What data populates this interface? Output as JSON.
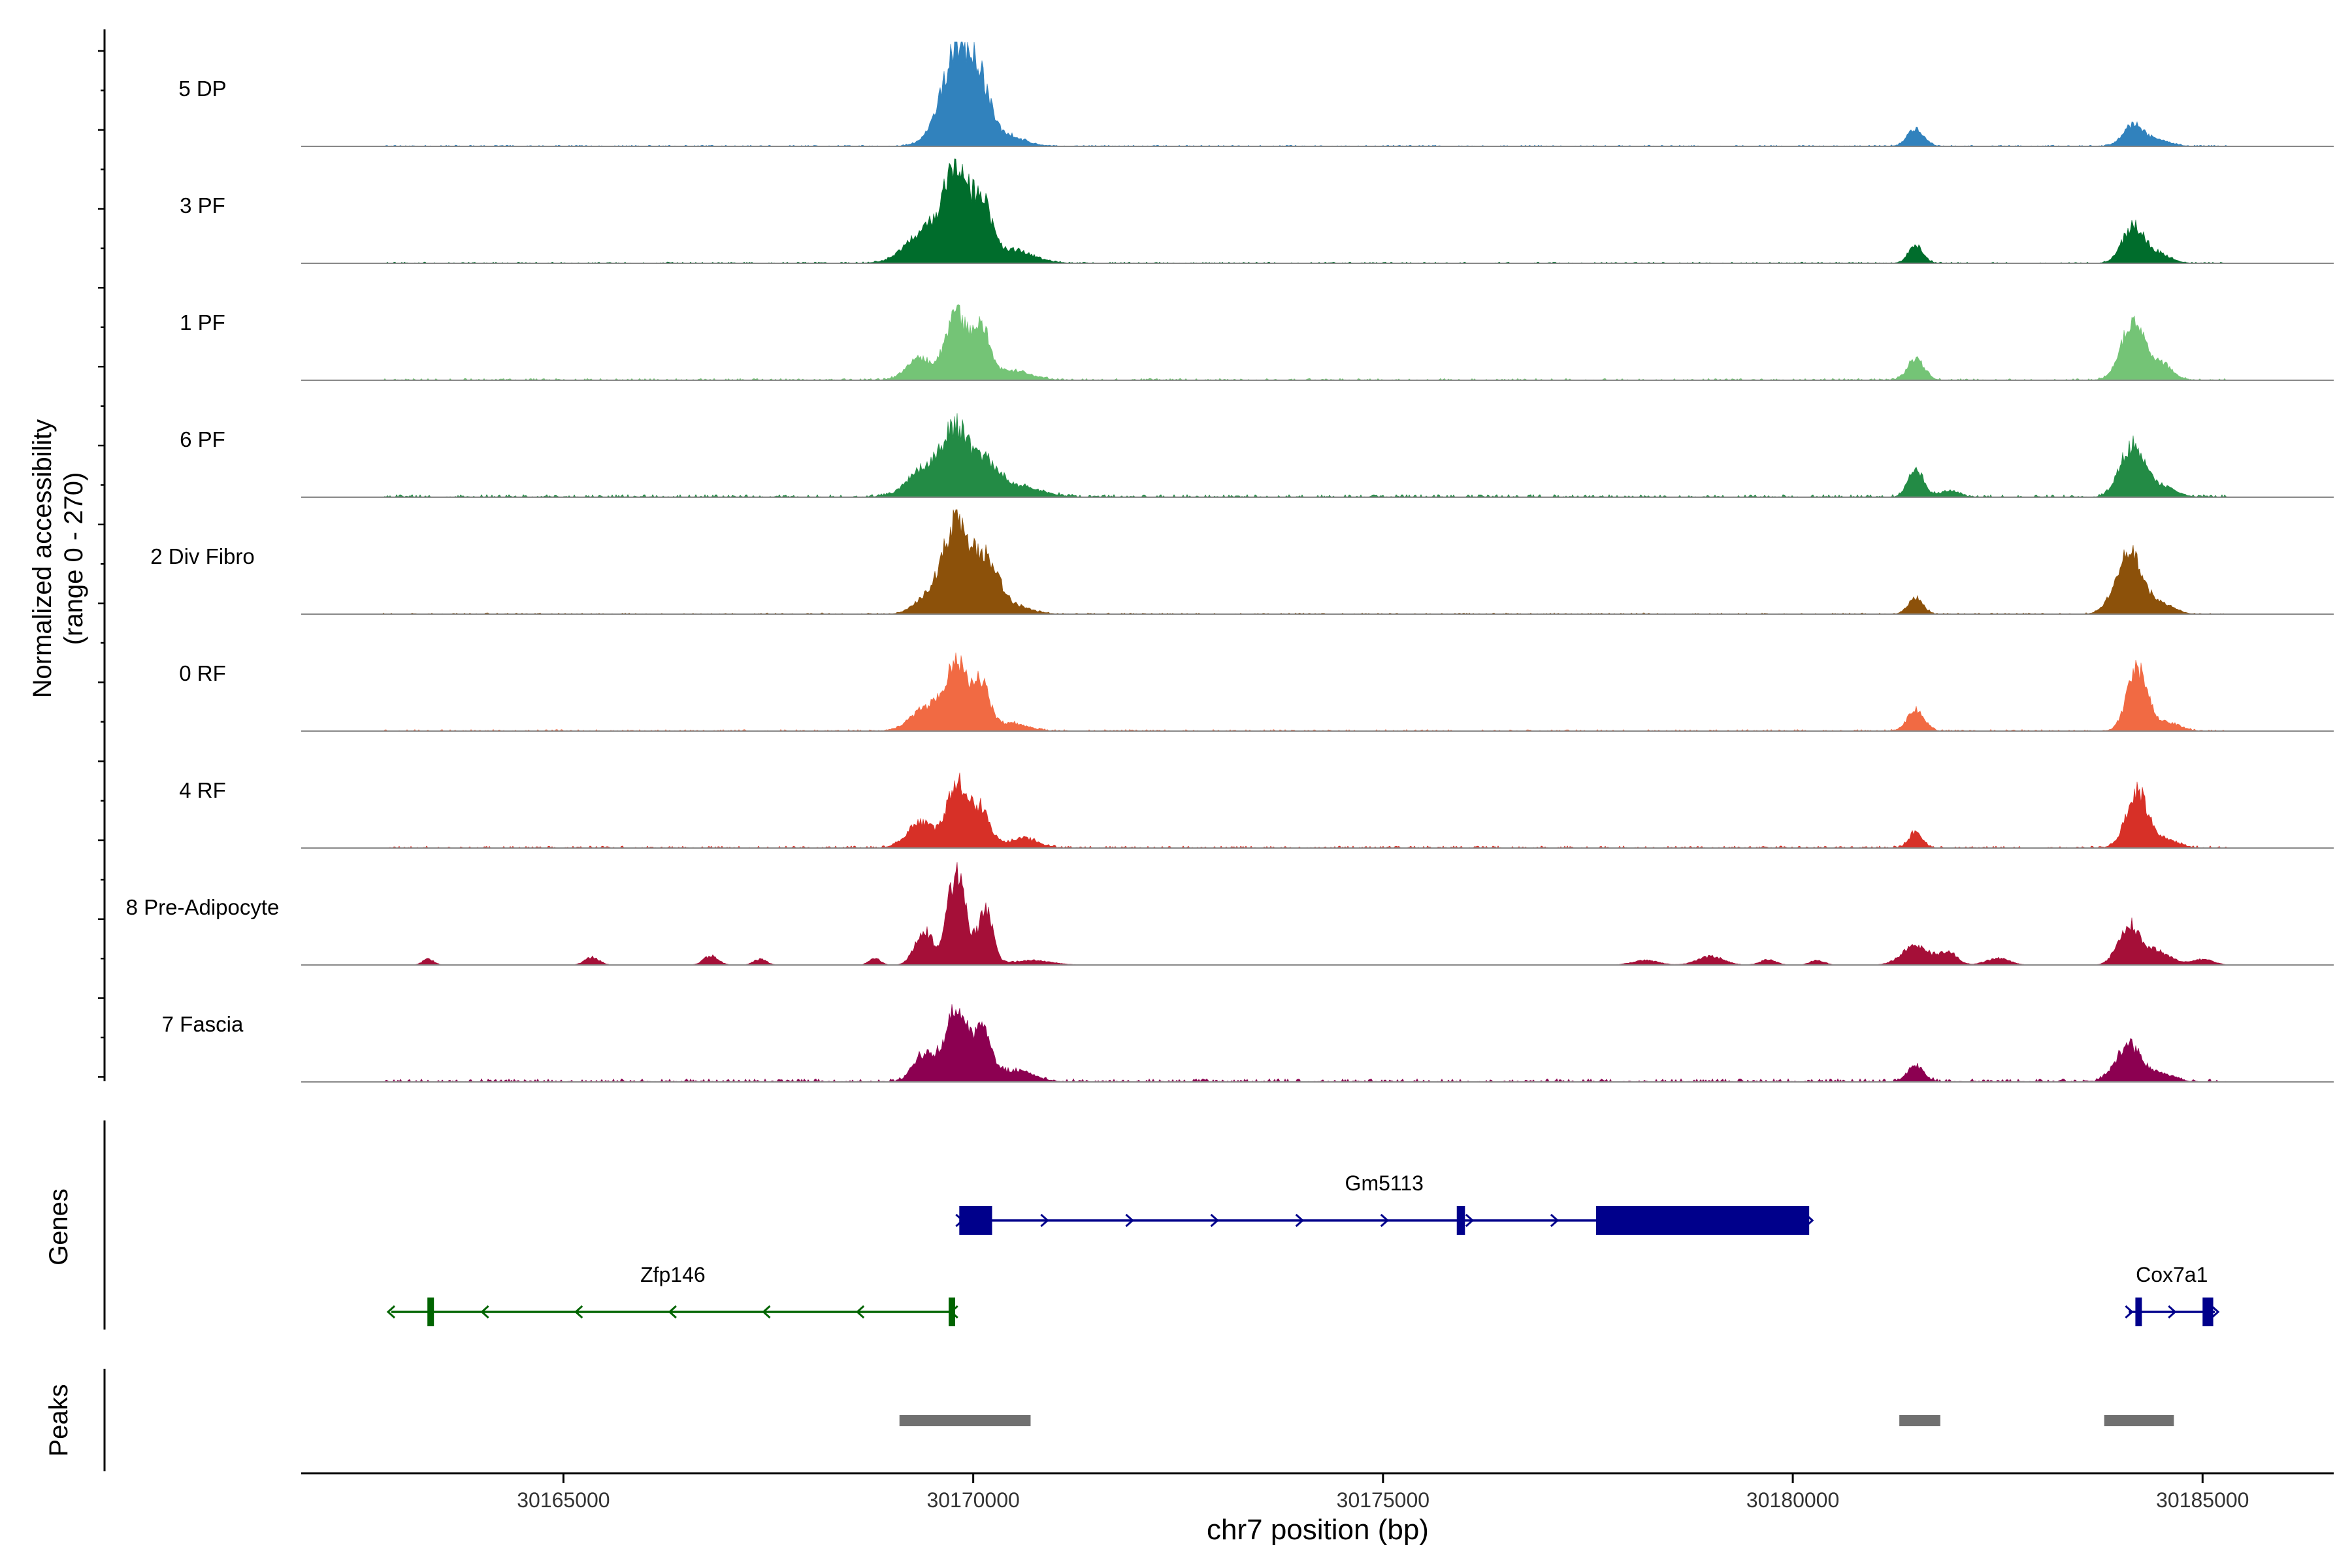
{
  "chart_data": {
    "type": "area",
    "title": "",
    "ylabel": "Normalized accessibility",
    "ylabel_range": "(range 0 - 270)",
    "xlabel": "chr7 position (bp)",
    "xlim": [
      30161800,
      30186600
    ],
    "ylim": [
      0,
      270
    ],
    "x_ticks": [
      30165000,
      30170000,
      30175000,
      30180000,
      30185000
    ],
    "x_tick_labels": [
      "30165000",
      "30170000",
      "30175000",
      "30180000",
      "30185000"
    ],
    "track_labels": {
      "genes": "Genes",
      "peaks": "Peaks"
    },
    "series": [
      {
        "name": "5 DP",
        "color": "#3182BD",
        "noise": 0.012,
        "peaks": [
          [
            30169700,
            75,
            200
          ],
          [
            30169820,
            195,
            150
          ],
          [
            30170080,
            125,
            120
          ],
          [
            30170300,
            35,
            250
          ],
          [
            30181500,
            45,
            100
          ],
          [
            30184150,
            55,
            120
          ],
          [
            30184450,
            18,
            150
          ]
        ]
      },
      {
        "name": "3 PF",
        "color": "#006D2C",
        "noise": 0.012,
        "peaks": [
          [
            30169500,
            100,
            260
          ],
          [
            30169800,
            210,
            130
          ],
          [
            30170100,
            155,
            110
          ],
          [
            30170450,
            35,
            260
          ],
          [
            30181500,
            45,
            90
          ],
          [
            30184150,
            95,
            130
          ],
          [
            30184450,
            25,
            150
          ]
        ]
      },
      {
        "name": "1 PF",
        "color": "#74C476",
        "noise": 0.018,
        "peaks": [
          [
            30169350,
            55,
            160
          ],
          [
            30169800,
            165,
            130
          ],
          [
            30170100,
            125,
            100
          ],
          [
            30170450,
            25,
            240
          ],
          [
            30181500,
            55,
            100
          ],
          [
            30184150,
            150,
            140
          ],
          [
            30184500,
            40,
            130
          ]
        ]
      },
      {
        "name": "6 PF",
        "color": "#238B45",
        "noise": 0.025,
        "peaks": [
          [
            30169450,
            80,
            220
          ],
          [
            30169800,
            150,
            150
          ],
          [
            30170150,
            85,
            170
          ],
          [
            30170600,
            25,
            250
          ],
          [
            30181500,
            75,
            90
          ],
          [
            30181900,
            15,
            120
          ],
          [
            30184150,
            135,
            150
          ],
          [
            30184550,
            25,
            140
          ]
        ]
      },
      {
        "name": "2 Div Fibro",
        "color": "#8C510A",
        "noise": 0.012,
        "peaks": [
          [
            30169500,
            60,
            170
          ],
          [
            30169800,
            230,
            140
          ],
          [
            30170150,
            140,
            150
          ],
          [
            30170500,
            20,
            200
          ],
          [
            30181500,
            40,
            90
          ],
          [
            30184100,
            160,
            160
          ],
          [
            30184500,
            25,
            150
          ]
        ]
      },
      {
        "name": "0 RF",
        "color": "#F16A43",
        "noise": 0.015,
        "peaks": [
          [
            30169450,
            60,
            200
          ],
          [
            30169800,
            165,
            130
          ],
          [
            30170100,
            115,
            100
          ],
          [
            30170450,
            20,
            200
          ],
          [
            30181500,
            55,
            100
          ],
          [
            30184200,
            160,
            120
          ],
          [
            30184550,
            22,
            160
          ]
        ]
      },
      {
        "name": "4 RF",
        "color": "#D73027",
        "noise": 0.02,
        "peaks": [
          [
            30169350,
            65,
            160
          ],
          [
            30169800,
            165,
            130
          ],
          [
            30170100,
            95,
            110
          ],
          [
            30170600,
            25,
            180
          ],
          [
            30181500,
            40,
            80
          ],
          [
            30184200,
            145,
            130
          ],
          [
            30184550,
            20,
            150
          ]
        ]
      },
      {
        "name": "8 Pre-Adipocyte",
        "color": "#A50F38",
        "noise": 0.0,
        "peaks": [
          [
            30163350,
            15,
            70
          ],
          [
            30165350,
            20,
            90
          ],
          [
            30166800,
            24,
            90
          ],
          [
            30167400,
            15,
            80
          ],
          [
            30168800,
            18,
            70
          ],
          [
            30169400,
            90,
            110
          ],
          [
            30169800,
            245,
            110
          ],
          [
            30170150,
            140,
            90
          ],
          [
            30170700,
            12,
            250
          ],
          [
            30178200,
            12,
            160
          ],
          [
            30179000,
            22,
            160
          ],
          [
            30179700,
            14,
            100
          ],
          [
            30180300,
            12,
            90
          ],
          [
            30181500,
            48,
            170
          ],
          [
            30181900,
            32,
            110
          ],
          [
            30182500,
            18,
            140
          ],
          [
            30184100,
            105,
            130
          ],
          [
            30184450,
            35,
            160
          ],
          [
            30185000,
            15,
            130
          ]
        ]
      },
      {
        "name": "7 Fascia",
        "color": "#8C0051",
        "noise": 0.03,
        "peaks": [
          [
            30169400,
            70,
            130
          ],
          [
            30169800,
            185,
            140
          ],
          [
            30170120,
            115,
            100
          ],
          [
            30170500,
            30,
            220
          ],
          [
            30181500,
            40,
            100
          ],
          [
            30184100,
            95,
            150
          ],
          [
            30184500,
            20,
            150
          ]
        ]
      }
    ],
    "genes": [
      {
        "name": "Gm5113",
        "strand": "+",
        "color": "#00008B",
        "start": 30169830,
        "end": 30180200,
        "exons": [
          [
            30169830,
            30170230
          ],
          [
            30175900,
            30176000
          ],
          [
            30177600,
            30180200
          ]
        ],
        "row": 1
      },
      {
        "name": "Zfp146",
        "strand": "-",
        "color": "#006400",
        "start": 30162900,
        "end": 30169770,
        "exons": [
          [
            30163340,
            30163380
          ],
          [
            30169700,
            30169760
          ]
        ],
        "row": 2
      },
      {
        "name": "Cox7a1",
        "strand": "+",
        "color": "#00008B",
        "start": 30184100,
        "end": 30185150,
        "exons": [
          [
            30184180,
            30184240
          ],
          [
            30185000,
            30185130
          ]
        ],
        "row": 2
      }
    ],
    "peaks": [
      [
        30169100,
        30170700
      ],
      [
        30181300,
        30181800
      ],
      [
        30183800,
        30184650
      ]
    ]
  }
}
